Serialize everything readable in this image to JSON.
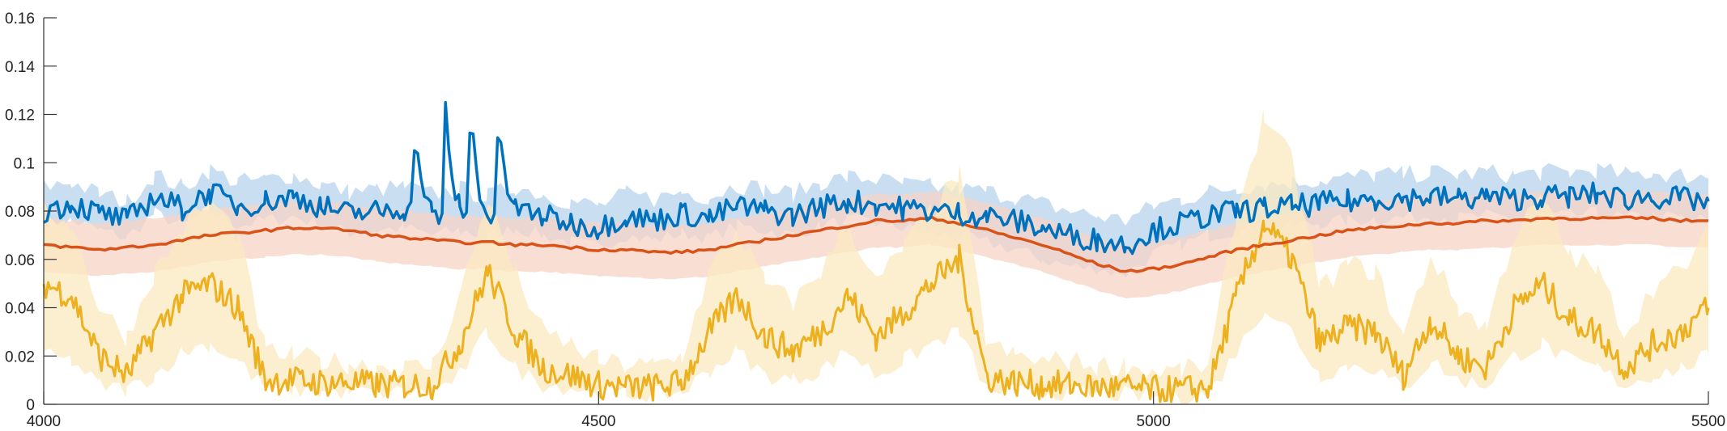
{
  "chart_data": {
    "type": "line",
    "title": "",
    "xlabel": "",
    "ylabel": "",
    "xlim": [
      4000,
      5500
    ],
    "ylim": [
      0,
      0.16
    ],
    "grid": false,
    "legend": "none",
    "x_ticks": [
      4000,
      4500,
      5000,
      5500
    ],
    "x_tick_labels": [
      "4000",
      "4500",
      "5000",
      "5500"
    ],
    "y_ticks": [
      0,
      0.02,
      0.04,
      0.06,
      0.08,
      0.1,
      0.12,
      0.14,
      0.16
    ],
    "y_tick_labels": [
      "0",
      "0.02",
      "0.04",
      "0.06",
      "0.08",
      "0.1",
      "0.12",
      "0.14",
      "0.16"
    ],
    "x": [
      4000,
      4025,
      4050,
      4075,
      4100,
      4125,
      4150,
      4175,
      4200,
      4225,
      4250,
      4275,
      4300,
      4325,
      4350,
      4375,
      4400,
      4425,
      4450,
      4475,
      4500,
      4525,
      4550,
      4575,
      4600,
      4625,
      4650,
      4675,
      4700,
      4725,
      4750,
      4775,
      4800,
      4825,
      4850,
      4875,
      4900,
      4925,
      4950,
      4975,
      5000,
      5025,
      5050,
      5075,
      5100,
      5125,
      5150,
      5175,
      5200,
      5225,
      5250,
      5275,
      5300,
      5325,
      5350,
      5375,
      5400,
      5425,
      5450,
      5475,
      5500
    ],
    "series": [
      {
        "color": "#0072BD",
        "band_color": "#b7d3ec",
        "values": [
          0.08,
          0.083,
          0.079,
          0.076,
          0.086,
          0.081,
          0.088,
          0.082,
          0.084,
          0.086,
          0.082,
          0.079,
          0.08,
          0.081,
          0.078,
          0.08,
          0.077,
          0.081,
          0.078,
          0.075,
          0.073,
          0.078,
          0.076,
          0.079,
          0.077,
          0.082,
          0.08,
          0.078,
          0.082,
          0.084,
          0.083,
          0.081,
          0.08,
          0.079,
          0.078,
          0.076,
          0.073,
          0.07,
          0.068,
          0.066,
          0.072,
          0.075,
          0.078,
          0.08,
          0.081,
          0.082,
          0.083,
          0.084,
          0.085,
          0.085,
          0.086,
          0.085,
          0.086,
          0.085,
          0.086,
          0.086,
          0.087,
          0.085,
          0.086,
          0.085,
          0.084
        ],
        "band": [
          [
            0.074,
            0.09
          ],
          [
            0.076,
            0.092
          ],
          [
            0.072,
            0.087
          ],
          [
            0.069,
            0.084
          ],
          [
            0.079,
            0.095
          ],
          [
            0.074,
            0.09
          ],
          [
            0.08,
            0.097
          ],
          [
            0.074,
            0.092
          ],
          [
            0.076,
            0.093
          ],
          [
            0.078,
            0.095
          ],
          [
            0.074,
            0.091
          ],
          [
            0.071,
            0.088
          ],
          [
            0.072,
            0.089
          ],
          [
            0.073,
            0.09
          ],
          [
            0.07,
            0.087
          ],
          [
            0.072,
            0.089
          ],
          [
            0.069,
            0.086
          ],
          [
            0.073,
            0.09
          ],
          [
            0.07,
            0.087
          ],
          [
            0.067,
            0.084
          ],
          [
            0.065,
            0.082
          ],
          [
            0.07,
            0.087
          ],
          [
            0.068,
            0.085
          ],
          [
            0.071,
            0.088
          ],
          [
            0.069,
            0.086
          ],
          [
            0.074,
            0.091
          ],
          [
            0.072,
            0.089
          ],
          [
            0.07,
            0.087
          ],
          [
            0.074,
            0.092
          ],
          [
            0.076,
            0.094
          ],
          [
            0.075,
            0.093
          ],
          [
            0.073,
            0.091
          ],
          [
            0.071,
            0.09
          ],
          [
            0.069,
            0.089
          ],
          [
            0.067,
            0.088
          ],
          [
            0.064,
            0.086
          ],
          [
            0.06,
            0.083
          ],
          [
            0.057,
            0.08
          ],
          [
            0.056,
            0.078
          ],
          [
            0.054,
            0.076
          ],
          [
            0.062,
            0.082
          ],
          [
            0.066,
            0.085
          ],
          [
            0.07,
            0.088
          ],
          [
            0.072,
            0.09
          ],
          [
            0.073,
            0.091
          ],
          [
            0.074,
            0.092
          ],
          [
            0.075,
            0.093
          ],
          [
            0.076,
            0.094
          ],
          [
            0.077,
            0.095
          ],
          [
            0.077,
            0.095
          ],
          [
            0.078,
            0.096
          ],
          [
            0.077,
            0.095
          ],
          [
            0.078,
            0.096
          ],
          [
            0.077,
            0.095
          ],
          [
            0.078,
            0.096
          ],
          [
            0.078,
            0.096
          ],
          [
            0.079,
            0.097
          ],
          [
            0.077,
            0.095
          ],
          [
            0.078,
            0.096
          ],
          [
            0.077,
            0.095
          ],
          [
            0.076,
            0.094
          ]
        ],
        "spikes": [
          [
            4335,
            0.118
          ],
          [
            4362,
            0.125
          ],
          [
            4385,
            0.128
          ],
          [
            4410,
            0.124
          ]
        ]
      },
      {
        "color": "#D95319",
        "band_color": "#f7d3c5",
        "values": [
          0.066,
          0.065,
          0.064,
          0.065,
          0.066,
          0.068,
          0.07,
          0.071,
          0.072,
          0.073,
          0.073,
          0.072,
          0.07,
          0.069,
          0.068,
          0.067,
          0.067,
          0.066,
          0.066,
          0.065,
          0.064,
          0.064,
          0.063,
          0.063,
          0.064,
          0.066,
          0.068,
          0.07,
          0.072,
          0.074,
          0.076,
          0.076,
          0.077,
          0.075,
          0.072,
          0.069,
          0.066,
          0.062,
          0.058,
          0.055,
          0.056,
          0.058,
          0.061,
          0.064,
          0.066,
          0.068,
          0.07,
          0.072,
          0.073,
          0.074,
          0.075,
          0.075,
          0.076,
          0.076,
          0.077,
          0.077,
          0.077,
          0.077,
          0.077,
          0.076,
          0.076
        ],
        "band": [
          [
            0.055,
            0.077
          ],
          [
            0.054,
            0.076
          ],
          [
            0.053,
            0.075
          ],
          [
            0.054,
            0.076
          ],
          [
            0.055,
            0.077
          ],
          [
            0.057,
            0.079
          ],
          [
            0.059,
            0.081
          ],
          [
            0.06,
            0.082
          ],
          [
            0.061,
            0.083
          ],
          [
            0.062,
            0.084
          ],
          [
            0.062,
            0.084
          ],
          [
            0.061,
            0.083
          ],
          [
            0.059,
            0.081
          ],
          [
            0.058,
            0.08
          ],
          [
            0.057,
            0.079
          ],
          [
            0.056,
            0.078
          ],
          [
            0.056,
            0.078
          ],
          [
            0.055,
            0.077
          ],
          [
            0.055,
            0.077
          ],
          [
            0.054,
            0.076
          ],
          [
            0.053,
            0.075
          ],
          [
            0.053,
            0.075
          ],
          [
            0.052,
            0.074
          ],
          [
            0.052,
            0.074
          ],
          [
            0.053,
            0.075
          ],
          [
            0.055,
            0.077
          ],
          [
            0.057,
            0.079
          ],
          [
            0.059,
            0.081
          ],
          [
            0.061,
            0.083
          ],
          [
            0.063,
            0.085
          ],
          [
            0.065,
            0.087
          ],
          [
            0.065,
            0.087
          ],
          [
            0.066,
            0.088
          ],
          [
            0.064,
            0.086
          ],
          [
            0.061,
            0.083
          ],
          [
            0.058,
            0.08
          ],
          [
            0.055,
            0.077
          ],
          [
            0.051,
            0.073
          ],
          [
            0.047,
            0.069
          ],
          [
            0.044,
            0.066
          ],
          [
            0.045,
            0.067
          ],
          [
            0.047,
            0.069
          ],
          [
            0.05,
            0.072
          ],
          [
            0.053,
            0.075
          ],
          [
            0.055,
            0.077
          ],
          [
            0.057,
            0.079
          ],
          [
            0.059,
            0.081
          ],
          [
            0.061,
            0.083
          ],
          [
            0.062,
            0.084
          ],
          [
            0.063,
            0.085
          ],
          [
            0.064,
            0.086
          ],
          [
            0.064,
            0.086
          ],
          [
            0.065,
            0.087
          ],
          [
            0.065,
            0.087
          ],
          [
            0.066,
            0.088
          ],
          [
            0.066,
            0.088
          ],
          [
            0.066,
            0.088
          ],
          [
            0.066,
            0.088
          ],
          [
            0.066,
            0.088
          ],
          [
            0.065,
            0.087
          ],
          [
            0.065,
            0.087
          ]
        ]
      },
      {
        "color": "#EDB120",
        "band_color": "#fbe9c0",
        "values": [
          0.05,
          0.045,
          0.02,
          0.012,
          0.03,
          0.045,
          0.05,
          0.04,
          0.01,
          0.01,
          0.009,
          0.009,
          0.008,
          0.008,
          0.008,
          0.025,
          0.055,
          0.03,
          0.015,
          0.012,
          0.008,
          0.007,
          0.007,
          0.009,
          0.03,
          0.045,
          0.028,
          0.022,
          0.03,
          0.045,
          0.028,
          0.038,
          0.05,
          0.06,
          0.011,
          0.009,
          0.008,
          0.008,
          0.007,
          0.007,
          0.006,
          0.006,
          0.007,
          0.045,
          0.075,
          0.06,
          0.025,
          0.032,
          0.03,
          0.012,
          0.035,
          0.02,
          0.015,
          0.04,
          0.05,
          0.035,
          0.03,
          0.015,
          0.025,
          0.03,
          0.04
        ],
        "band": [
          [
            0.02,
            0.08
          ],
          [
            0.018,
            0.075
          ],
          [
            0.008,
            0.04
          ],
          [
            0.006,
            0.028
          ],
          [
            0.012,
            0.055
          ],
          [
            0.022,
            0.072
          ],
          [
            0.025,
            0.085
          ],
          [
            0.018,
            0.07
          ],
          [
            0.006,
            0.022
          ],
          [
            0.006,
            0.02
          ],
          [
            0.005,
            0.018
          ],
          [
            0.005,
            0.017
          ],
          [
            0.005,
            0.016
          ],
          [
            0.005,
            0.015
          ],
          [
            0.005,
            0.016
          ],
          [
            0.012,
            0.045
          ],
          [
            0.03,
            0.085
          ],
          [
            0.015,
            0.055
          ],
          [
            0.008,
            0.03
          ],
          [
            0.007,
            0.025
          ],
          [
            0.005,
            0.018
          ],
          [
            0.004,
            0.016
          ],
          [
            0.004,
            0.016
          ],
          [
            0.005,
            0.02
          ],
          [
            0.014,
            0.055
          ],
          [
            0.022,
            0.072
          ],
          [
            0.012,
            0.05
          ],
          [
            0.01,
            0.042
          ],
          [
            0.014,
            0.055
          ],
          [
            0.022,
            0.075
          ],
          [
            0.012,
            0.05
          ],
          [
            0.018,
            0.065
          ],
          [
            0.025,
            0.08
          ],
          [
            0.03,
            0.095
          ],
          [
            0.006,
            0.025
          ],
          [
            0.005,
            0.02
          ],
          [
            0.005,
            0.018
          ],
          [
            0.005,
            0.018
          ],
          [
            0.004,
            0.016
          ],
          [
            0.004,
            0.016
          ],
          [
            0.003,
            0.014
          ],
          [
            0.003,
            0.014
          ],
          [
            0.004,
            0.016
          ],
          [
            0.022,
            0.08
          ],
          [
            0.04,
            0.12
          ],
          [
            0.03,
            0.1
          ],
          [
            0.012,
            0.048
          ],
          [
            0.016,
            0.058
          ],
          [
            0.015,
            0.055
          ],
          [
            0.006,
            0.028
          ],
          [
            0.018,
            0.062
          ],
          [
            0.01,
            0.04
          ],
          [
            0.008,
            0.032
          ],
          [
            0.02,
            0.07
          ],
          [
            0.025,
            0.085
          ],
          [
            0.018,
            0.062
          ],
          [
            0.015,
            0.055
          ],
          [
            0.008,
            0.03
          ],
          [
            0.012,
            0.048
          ],
          [
            0.015,
            0.055
          ],
          [
            0.02,
            0.07
          ]
        ]
      }
    ]
  }
}
